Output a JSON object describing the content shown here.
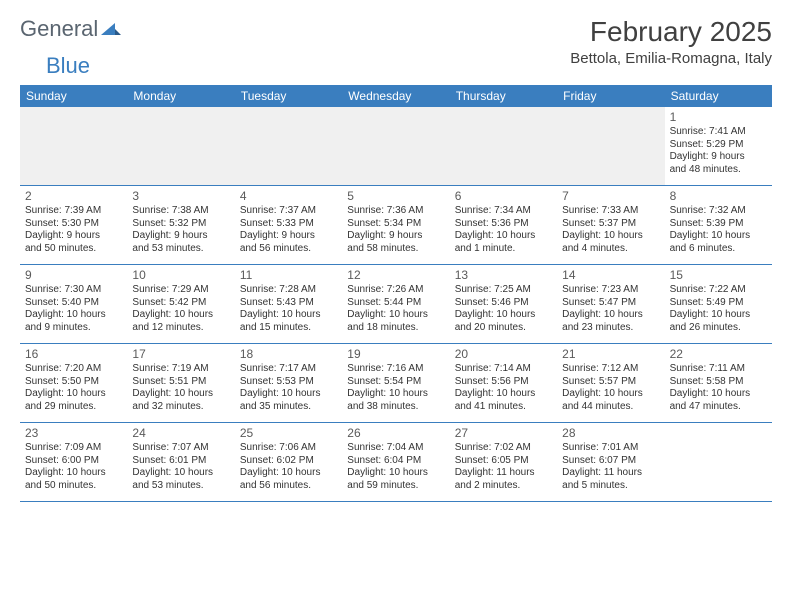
{
  "logo": {
    "part1": "General",
    "part2": "Blue"
  },
  "title": "February 2025",
  "location": "Bettola, Emilia-Romagna, Italy",
  "colors": {
    "header_bg": "#3a7ebf",
    "header_text": "#ffffff",
    "border": "#3a7ebf",
    "text": "#333333",
    "title_text": "#404040",
    "empty_row_bg": "#f0f0f0",
    "logo_gray": "#5a6570",
    "logo_blue": "#3a7ebf"
  },
  "dayHeaders": [
    "Sunday",
    "Monday",
    "Tuesday",
    "Wednesday",
    "Thursday",
    "Friday",
    "Saturday"
  ],
  "weeks": [
    [
      null,
      null,
      null,
      null,
      null,
      null,
      {
        "n": "1",
        "sr": "Sunrise: 7:41 AM",
        "ss": "Sunset: 5:29 PM",
        "d1": "Daylight: 9 hours",
        "d2": "and 48 minutes."
      }
    ],
    [
      {
        "n": "2",
        "sr": "Sunrise: 7:39 AM",
        "ss": "Sunset: 5:30 PM",
        "d1": "Daylight: 9 hours",
        "d2": "and 50 minutes."
      },
      {
        "n": "3",
        "sr": "Sunrise: 7:38 AM",
        "ss": "Sunset: 5:32 PM",
        "d1": "Daylight: 9 hours",
        "d2": "and 53 minutes."
      },
      {
        "n": "4",
        "sr": "Sunrise: 7:37 AM",
        "ss": "Sunset: 5:33 PM",
        "d1": "Daylight: 9 hours",
        "d2": "and 56 minutes."
      },
      {
        "n": "5",
        "sr": "Sunrise: 7:36 AM",
        "ss": "Sunset: 5:34 PM",
        "d1": "Daylight: 9 hours",
        "d2": "and 58 minutes."
      },
      {
        "n": "6",
        "sr": "Sunrise: 7:34 AM",
        "ss": "Sunset: 5:36 PM",
        "d1": "Daylight: 10 hours",
        "d2": "and 1 minute."
      },
      {
        "n": "7",
        "sr": "Sunrise: 7:33 AM",
        "ss": "Sunset: 5:37 PM",
        "d1": "Daylight: 10 hours",
        "d2": "and 4 minutes."
      },
      {
        "n": "8",
        "sr": "Sunrise: 7:32 AM",
        "ss": "Sunset: 5:39 PM",
        "d1": "Daylight: 10 hours",
        "d2": "and 6 minutes."
      }
    ],
    [
      {
        "n": "9",
        "sr": "Sunrise: 7:30 AM",
        "ss": "Sunset: 5:40 PM",
        "d1": "Daylight: 10 hours",
        "d2": "and 9 minutes."
      },
      {
        "n": "10",
        "sr": "Sunrise: 7:29 AM",
        "ss": "Sunset: 5:42 PM",
        "d1": "Daylight: 10 hours",
        "d2": "and 12 minutes."
      },
      {
        "n": "11",
        "sr": "Sunrise: 7:28 AM",
        "ss": "Sunset: 5:43 PM",
        "d1": "Daylight: 10 hours",
        "d2": "and 15 minutes."
      },
      {
        "n": "12",
        "sr": "Sunrise: 7:26 AM",
        "ss": "Sunset: 5:44 PM",
        "d1": "Daylight: 10 hours",
        "d2": "and 18 minutes."
      },
      {
        "n": "13",
        "sr": "Sunrise: 7:25 AM",
        "ss": "Sunset: 5:46 PM",
        "d1": "Daylight: 10 hours",
        "d2": "and 20 minutes."
      },
      {
        "n": "14",
        "sr": "Sunrise: 7:23 AM",
        "ss": "Sunset: 5:47 PM",
        "d1": "Daylight: 10 hours",
        "d2": "and 23 minutes."
      },
      {
        "n": "15",
        "sr": "Sunrise: 7:22 AM",
        "ss": "Sunset: 5:49 PM",
        "d1": "Daylight: 10 hours",
        "d2": "and 26 minutes."
      }
    ],
    [
      {
        "n": "16",
        "sr": "Sunrise: 7:20 AM",
        "ss": "Sunset: 5:50 PM",
        "d1": "Daylight: 10 hours",
        "d2": "and 29 minutes."
      },
      {
        "n": "17",
        "sr": "Sunrise: 7:19 AM",
        "ss": "Sunset: 5:51 PM",
        "d1": "Daylight: 10 hours",
        "d2": "and 32 minutes."
      },
      {
        "n": "18",
        "sr": "Sunrise: 7:17 AM",
        "ss": "Sunset: 5:53 PM",
        "d1": "Daylight: 10 hours",
        "d2": "and 35 minutes."
      },
      {
        "n": "19",
        "sr": "Sunrise: 7:16 AM",
        "ss": "Sunset: 5:54 PM",
        "d1": "Daylight: 10 hours",
        "d2": "and 38 minutes."
      },
      {
        "n": "20",
        "sr": "Sunrise: 7:14 AM",
        "ss": "Sunset: 5:56 PM",
        "d1": "Daylight: 10 hours",
        "d2": "and 41 minutes."
      },
      {
        "n": "21",
        "sr": "Sunrise: 7:12 AM",
        "ss": "Sunset: 5:57 PM",
        "d1": "Daylight: 10 hours",
        "d2": "and 44 minutes."
      },
      {
        "n": "22",
        "sr": "Sunrise: 7:11 AM",
        "ss": "Sunset: 5:58 PM",
        "d1": "Daylight: 10 hours",
        "d2": "and 47 minutes."
      }
    ],
    [
      {
        "n": "23",
        "sr": "Sunrise: 7:09 AM",
        "ss": "Sunset: 6:00 PM",
        "d1": "Daylight: 10 hours",
        "d2": "and 50 minutes."
      },
      {
        "n": "24",
        "sr": "Sunrise: 7:07 AM",
        "ss": "Sunset: 6:01 PM",
        "d1": "Daylight: 10 hours",
        "d2": "and 53 minutes."
      },
      {
        "n": "25",
        "sr": "Sunrise: 7:06 AM",
        "ss": "Sunset: 6:02 PM",
        "d1": "Daylight: 10 hours",
        "d2": "and 56 minutes."
      },
      {
        "n": "26",
        "sr": "Sunrise: 7:04 AM",
        "ss": "Sunset: 6:04 PM",
        "d1": "Daylight: 10 hours",
        "d2": "and 59 minutes."
      },
      {
        "n": "27",
        "sr": "Sunrise: 7:02 AM",
        "ss": "Sunset: 6:05 PM",
        "d1": "Daylight: 11 hours",
        "d2": "and 2 minutes."
      },
      {
        "n": "28",
        "sr": "Sunrise: 7:01 AM",
        "ss": "Sunset: 6:07 PM",
        "d1": "Daylight: 11 hours",
        "d2": "and 5 minutes."
      },
      null
    ]
  ]
}
